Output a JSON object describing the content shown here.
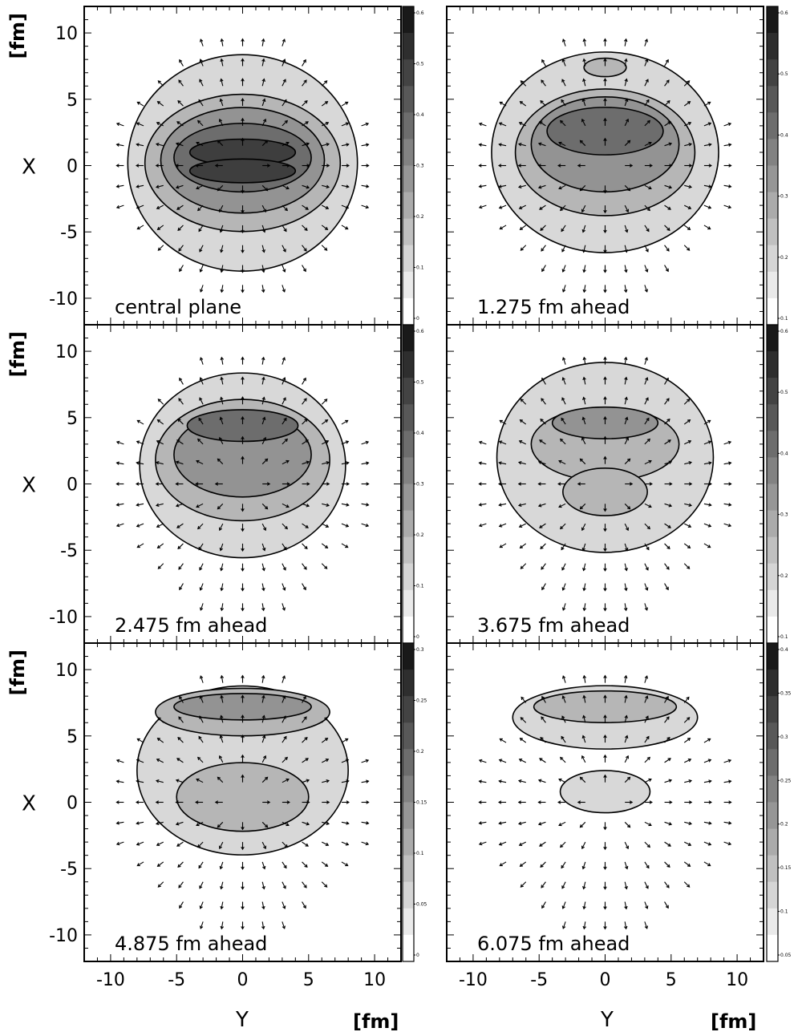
{
  "chart_data": {
    "type": "heatmap",
    "layout": "3 rows x 2 columns of contour/vector-field panels",
    "x_axis": {
      "label": "Y",
      "unit": "[fm]",
      "range": [
        -12,
        12
      ],
      "ticks": [
        "-10",
        "-5",
        "0",
        "5",
        "10"
      ]
    },
    "y_axis": {
      "label": "X",
      "unit": "[fm]",
      "range": [
        -12,
        12
      ],
      "ticks": [
        "10",
        "5",
        "0",
        "-5",
        "-10"
      ]
    },
    "panels": [
      {
        "label": "central plane",
        "contours": [
          {
            "cx": 0,
            "cy": 0.2,
            "rx": 8.7,
            "ry": 8.2,
            "level": 1
          },
          {
            "cx": 0,
            "cy": 0.2,
            "rx": 7.4,
            "ry": 5.2,
            "level": 2
          },
          {
            "cx": 0,
            "cy": 0.4,
            "rx": 6.2,
            "ry": 4.0,
            "level": 3
          },
          {
            "cx": 0,
            "cy": 0.6,
            "rx": 5.2,
            "ry": 2.6,
            "level": 4
          },
          {
            "cx": 0,
            "cy": 1.0,
            "rx": 4.0,
            "ry": 1.0,
            "level": 5
          },
          {
            "cx": 0,
            "cy": -0.4,
            "rx": 4.0,
            "ry": 0.9,
            "level": 5
          }
        ]
      },
      {
        "label": "1.275 fm ahead",
        "contours": [
          {
            "cx": 0,
            "cy": 1.0,
            "rx": 8.6,
            "ry": 7.6,
            "level": 1
          },
          {
            "cx": 0,
            "cy": 1.0,
            "rx": 6.8,
            "ry": 4.8,
            "level": 2
          },
          {
            "cx": 0,
            "cy": 1.6,
            "rx": 5.6,
            "ry": 3.6,
            "level": 3
          },
          {
            "cx": 0,
            "cy": 2.6,
            "rx": 4.4,
            "ry": 1.8,
            "level": 4
          },
          {
            "cx": 0,
            "cy": 7.4,
            "rx": 1.6,
            "ry": 0.7,
            "level": 2
          }
        ]
      },
      {
        "label": "2.475 fm ahead",
        "contours": [
          {
            "cx": 0,
            "cy": 1.4,
            "rx": 7.8,
            "ry": 7.0,
            "level": 1
          },
          {
            "cx": 0,
            "cy": 1.8,
            "rx": 6.6,
            "ry": 4.6,
            "level": 2
          },
          {
            "cx": 0,
            "cy": 2.2,
            "rx": 5.2,
            "ry": 3.2,
            "level": 3
          },
          {
            "cx": 0,
            "cy": 4.4,
            "rx": 4.2,
            "ry": 1.2,
            "level": 4
          }
        ]
      },
      {
        "label": "3.675 fm ahead",
        "contours": [
          {
            "cx": 0,
            "cy": 2.0,
            "rx": 8.2,
            "ry": 7.2,
            "level": 1
          },
          {
            "cx": 0,
            "cy": 3.0,
            "rx": 5.6,
            "ry": 2.8,
            "level": 2
          },
          {
            "cx": 0,
            "cy": 4.6,
            "rx": 4.0,
            "ry": 1.2,
            "level": 3
          },
          {
            "cx": 0,
            "cy": -0.6,
            "rx": 3.2,
            "ry": 1.8,
            "level": 2
          }
        ]
      },
      {
        "label": "4.875 fm ahead",
        "contours": [
          {
            "cx": 0,
            "cy": 2.4,
            "rx": 8.0,
            "ry": 6.4,
            "level": 1
          },
          {
            "cx": 0,
            "cy": 6.8,
            "rx": 6.6,
            "ry": 1.8,
            "level": 2
          },
          {
            "cx": 0,
            "cy": 7.2,
            "rx": 5.2,
            "ry": 1.0,
            "level": 3
          },
          {
            "cx": 0,
            "cy": 0.4,
            "rx": 5.0,
            "ry": 2.6,
            "level": 2
          }
        ]
      },
      {
        "label": "6.075 fm ahead",
        "contours": [
          {
            "cx": 0,
            "cy": 6.4,
            "rx": 7.0,
            "ry": 2.4,
            "level": 1
          },
          {
            "cx": 0,
            "cy": 7.2,
            "rx": 5.4,
            "ry": 1.2,
            "level": 2
          },
          {
            "cx": 0,
            "cy": 0.8,
            "rx": 3.4,
            "ry": 1.6,
            "level": 1
          }
        ]
      }
    ],
    "colorbars": [
      {
        "labels": [
          "0.6",
          "0.5",
          "0.4",
          "0.3",
          "0.2",
          "0.1",
          "0"
        ]
      },
      {
        "labels": [
          "0.6",
          "0.5",
          "0.4",
          "0.3",
          "0.2",
          "0.1"
        ]
      },
      {
        "labels": [
          "0.6",
          "0.5",
          "0.4",
          "0.3",
          "0.2",
          "0.1",
          "0"
        ]
      },
      {
        "labels": [
          "0.6",
          "0.5",
          "0.4",
          "0.3",
          "0.2",
          "0.1"
        ]
      },
      {
        "labels": [
          "0.3",
          "0.25",
          "0.2",
          "0.15",
          "0.1",
          "0.05",
          "0"
        ]
      },
      {
        "labels": [
          "0.4",
          "0.35",
          "0.3",
          "0.25",
          "0.2",
          "0.15",
          "0.1",
          "0.05"
        ]
      }
    ],
    "grid": false,
    "legend": "none"
  },
  "colors": {
    "levels": [
      "#ffffff",
      "#d8d8d8",
      "#b6b6b6",
      "#939393",
      "#6d6d6d",
      "#3e3e3e"
    ]
  }
}
